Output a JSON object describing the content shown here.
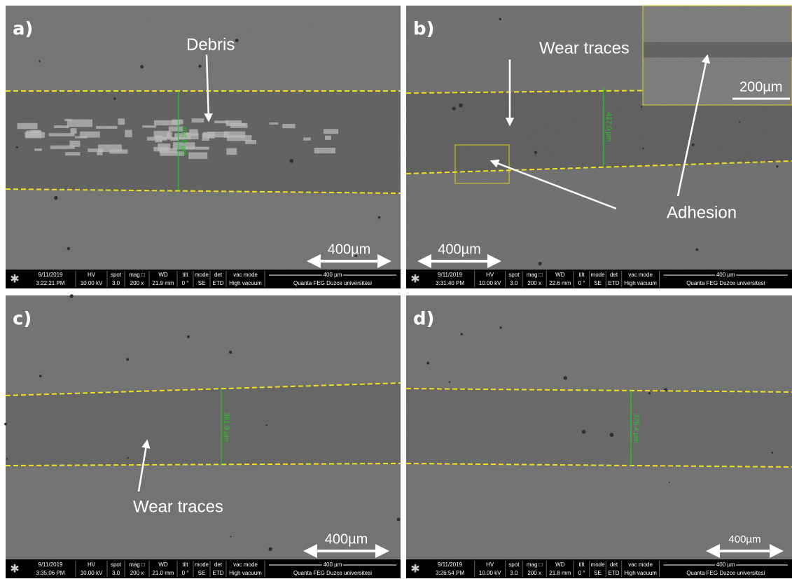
{
  "info_headers": [
    "HV",
    "spot",
    "mag □",
    "WD",
    "tilt",
    "mode",
    "det",
    "vac mode"
  ],
  "panels": [
    {
      "label": "a)",
      "annotations": [
        "Debris"
      ],
      "measurement": "404.9 µm",
      "scale_bar": "400µm",
      "info": {
        "date": "9/11/2019",
        "time": "3:22:21 PM",
        "hv": "10.00 kV",
        "spot": "3.0",
        "mag": "200 x",
        "wd": "21.9 mm",
        "tilt": "0 °",
        "mode": "SE",
        "det": "ETD",
        "vac": "High vacuum",
        "scale": "400 µm",
        "instrument": "Quanta FEG Duzce universitesi"
      }
    },
    {
      "label": "b)",
      "annotations": [
        "Wear traces",
        "Adhesion"
      ],
      "measurement": "417.0 µm",
      "scale_bar": "400µm",
      "inset_scale_bar": "200µm",
      "info": {
        "date": "9/11/2019",
        "time": "3:31:40 PM",
        "hv": "10.00 kV",
        "spot": "3.0",
        "mag": "200 x",
        "wd": "22.6 mm",
        "tilt": "0 °",
        "mode": "SE",
        "det": "ETD",
        "vac": "High vacuum",
        "scale": "400 µm",
        "instrument": "Quanta FEG Duzce universitesi"
      }
    },
    {
      "label": "c)",
      "annotations": [
        "Wear traces"
      ],
      "measurement": "381.9 µm",
      "scale_bar": "400µm",
      "info": {
        "date": "9/11/2019",
        "time": "3:35:06 PM",
        "hv": "10.00 kV",
        "spot": "3.0",
        "mag": "200 x",
        "wd": "21.0 mm",
        "tilt": "0 °",
        "mode": "SE",
        "det": "ETD",
        "vac": "High vacuum",
        "scale": "400 µm",
        "instrument": "Quanta FEG Duzce universitesi"
      }
    },
    {
      "label": "d)",
      "annotations": [],
      "measurement": "376.4 µm",
      "scale_bar": "400µm",
      "info": {
        "date": "9/11/2019",
        "time": "3:26:54 PM",
        "hv": "10.00 kV",
        "spot": "3.0",
        "mag": "200 x",
        "wd": "21.8 mm",
        "tilt": "0 °",
        "mode": "SE",
        "det": "ETD",
        "vac": "High vacuum",
        "scale": "400 µm",
        "instrument": "Quanta FEG Duzce universitesi"
      }
    }
  ]
}
